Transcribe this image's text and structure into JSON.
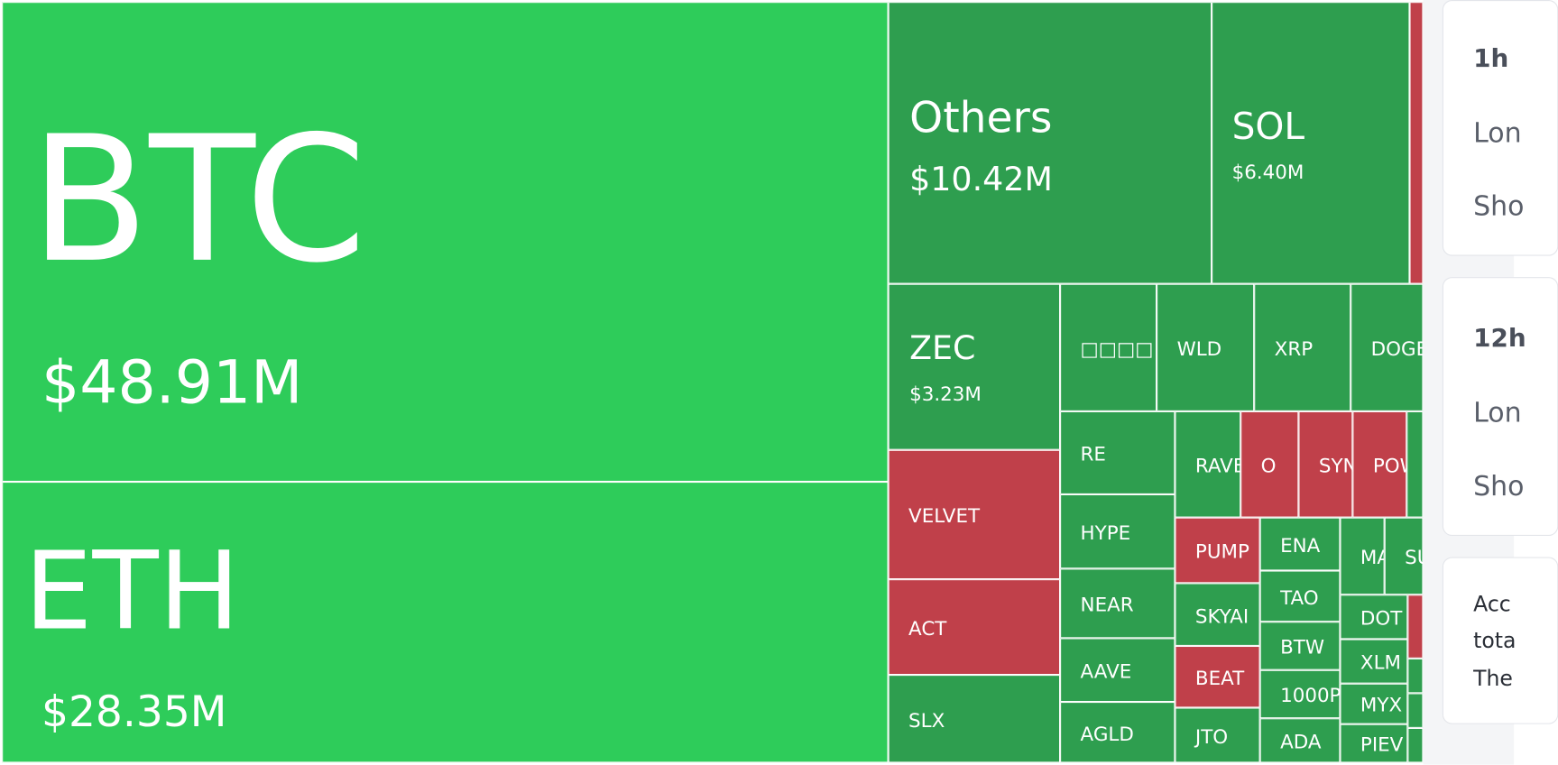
{
  "treemap": {
    "tiles": [
      {
        "label": "BTC",
        "amount": "$48.91M",
        "color": "#2ecc5a"
      },
      {
        "label": "ETH",
        "amount": "$28.35M",
        "color": "#2ecc5a"
      },
      {
        "label": "Others",
        "amount": "$10.42M",
        "color": "#2e9e4f"
      },
      {
        "label": "SOL",
        "amount": "$6.40M",
        "color": "#2e9e4f"
      },
      {
        "color": "#c0404a"
      },
      {
        "label": "ZEC",
        "amount": "$3.23M",
        "color": "#2e9e4f"
      },
      {
        "label": "□□□□",
        "color": "#2e9e4f"
      },
      {
        "label": "WLD",
        "color": "#2e9e4f"
      },
      {
        "label": "XRP",
        "color": "#2e9e4f"
      },
      {
        "label": "DOGE",
        "color": "#2e9e4f"
      },
      {
        "label": "VELVET",
        "color": "#c0404a"
      },
      {
        "label": "ACT",
        "color": "#c0404a"
      },
      {
        "label": "SLX",
        "color": "#2e9e4f"
      },
      {
        "label": "RE",
        "color": "#2e9e4f"
      },
      {
        "label": "HYPE",
        "color": "#2e9e4f"
      },
      {
        "label": "NEAR",
        "color": "#2e9e4f"
      },
      {
        "label": "AAVE",
        "color": "#2e9e4f"
      },
      {
        "label": "AGLD",
        "color": "#2e9e4f"
      },
      {
        "label": "RAVE",
        "color": "#2e9e4f"
      },
      {
        "label": "O",
        "color": "#c0404a"
      },
      {
        "label": "SYN",
        "color": "#c0404a"
      },
      {
        "label": "POW",
        "color": "#c0404a"
      },
      {
        "color": "#2e9e4f"
      },
      {
        "label": "PUMP",
        "color": "#c0404a"
      },
      {
        "label": "SKYAI",
        "color": "#2e9e4f"
      },
      {
        "label": "BEAT",
        "color": "#c0404a"
      },
      {
        "label": "JTO",
        "color": "#2e9e4f"
      },
      {
        "label": "ENA",
        "color": "#2e9e4f"
      },
      {
        "label": "TAO",
        "color": "#2e9e4f"
      },
      {
        "label": "BTW",
        "color": "#2e9e4f"
      },
      {
        "label": "1000P",
        "color": "#2e9e4f"
      },
      {
        "label": "ADA",
        "color": "#2e9e4f"
      },
      {
        "label": "MA",
        "color": "#2e9e4f"
      },
      {
        "label": "SU",
        "color": "#2e9e4f"
      },
      {
        "label": "DOT",
        "color": "#2e9e4f"
      },
      {
        "color": "#c0404a"
      },
      {
        "label": "XLM",
        "color": "#2e9e4f"
      },
      {
        "label": "MYX",
        "color": "#2e9e4f"
      },
      {
        "label": "PIEV",
        "color": "#2e9e4f"
      },
      {
        "color": "#2e9e4f"
      },
      {
        "color": "#2e9e4f"
      },
      {
        "color": "#2e9e4f"
      }
    ]
  },
  "panel": {
    "cards": [
      {
        "title": "1h",
        "lines": [
          "Lon",
          "Sho"
        ]
      },
      {
        "title": "12h",
        "lines": [
          "Lon",
          "Sho"
        ]
      },
      {
        "lines": [
          "Acc",
          "tota",
          "The"
        ]
      }
    ]
  }
}
